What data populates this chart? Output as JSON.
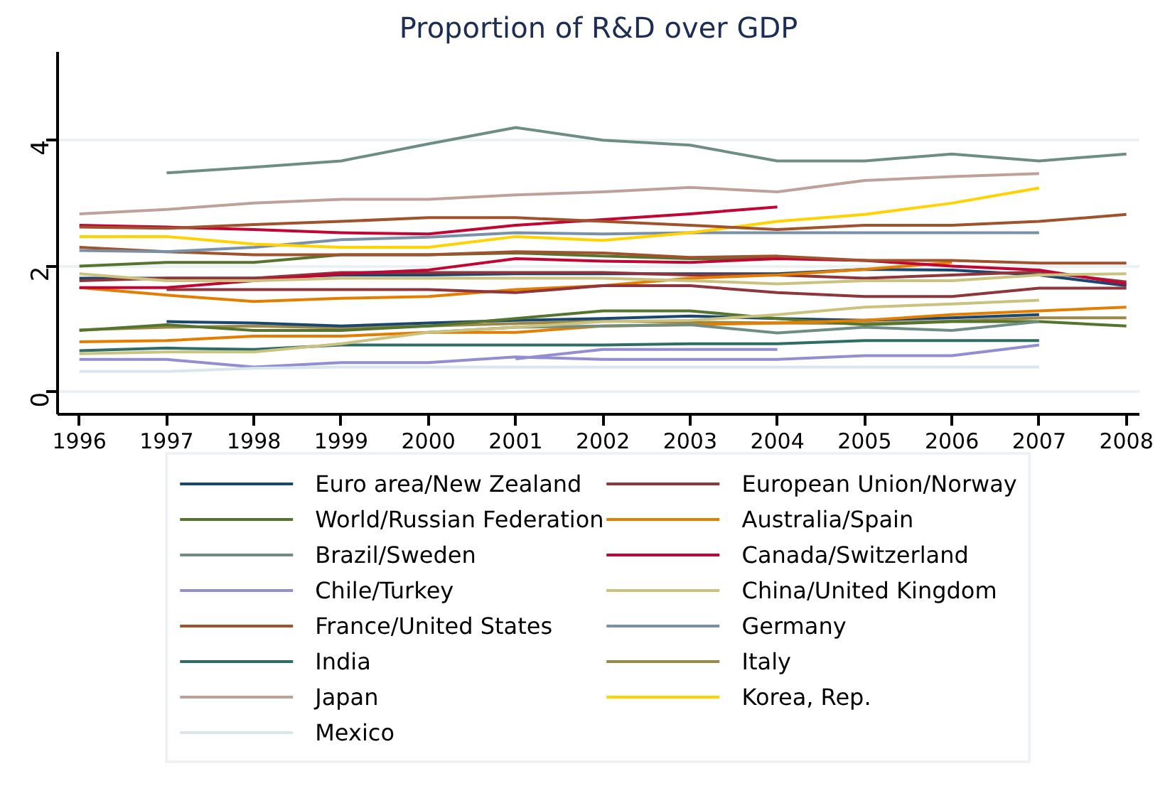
{
  "chart_data": {
    "type": "line",
    "title": "Proportion of R&D over GDP",
    "x": [
      1996,
      1997,
      1998,
      1999,
      2000,
      2001,
      2002,
      2003,
      2004,
      2005,
      2006,
      2007,
      2008
    ],
    "xlim": [
      1995.75,
      2008.15
    ],
    "xticks": [
      1996,
      1997,
      1998,
      1999,
      2000,
      2001,
      2002,
      2003,
      2004,
      2005,
      2006,
      2007,
      2008
    ],
    "ylim": [
      -0.35,
      5.4
    ],
    "yticks": [
      0,
      2,
      4
    ],
    "grid": "y",
    "legend": "bottom",
    "line_style": "solid",
    "marker": "none",
    "series": [
      {
        "name": "Euro area/New Zealand",
        "color": "#1a476f",
        "values": [
          1.81,
          1.81,
          1.81,
          1.86,
          1.86,
          1.88,
          1.88,
          1.88,
          1.88,
          1.95,
          1.94,
          1.86,
          1.69
        ]
      },
      {
        "name": "European Union/Norway",
        "color": "#90353b",
        "values": [
          1.77,
          1.81,
          1.81,
          1.9,
          1.9,
          1.9,
          1.9,
          1.86,
          1.86,
          1.81,
          1.86,
          1.91,
          1.75
        ]
      },
      {
        "name": "World/Russian Federation",
        "color": "#55752f",
        "values": [
          2.0,
          2.06,
          2.06,
          2.18,
          2.18,
          2.21,
          2.16,
          2.12,
          2.12,
          null,
          null,
          null,
          null
        ]
      },
      {
        "name": "Australia/Spain",
        "color": "#e37e00",
        "values": [
          1.66,
          1.54,
          1.44,
          1.49,
          1.52,
          1.63,
          1.69,
          1.81,
          1.86,
          1.95,
          2.06,
          null,
          null
        ]
      },
      {
        "name": "Brazil/Sweden",
        "color": "#6e8e84",
        "values": [
          null,
          3.48,
          3.57,
          3.67,
          3.94,
          4.2,
          4.0,
          3.92,
          3.67,
          3.67,
          3.78,
          3.67,
          3.78
        ]
      },
      {
        "name": "Canada/Switzerland",
        "color": "#c10534",
        "values": [
          1.66,
          1.66,
          1.77,
          1.88,
          1.94,
          2.12,
          2.08,
          2.06,
          2.12,
          2.09,
          2.0,
          1.94,
          1.72
        ]
      },
      {
        "name": "Chile/Turkey",
        "color": "#938dd2",
        "values": [
          0.52,
          0.52,
          0.4,
          0.47,
          0.47,
          0.56,
          0.52,
          0.52,
          0.52,
          0.58,
          0.58,
          0.75,
          null
        ]
      },
      {
        "name": "China/United Kingdom",
        "color": "#cac27e",
        "values": [
          1.88,
          1.77,
          1.77,
          1.81,
          1.81,
          1.81,
          1.81,
          1.77,
          1.72,
          1.77,
          1.77,
          1.86,
          1.88
        ]
      },
      {
        "name": "France/United States",
        "color": "#a0522d",
        "values": [
          2.3,
          2.23,
          2.18,
          2.18,
          2.18,
          2.23,
          2.21,
          2.14,
          2.16,
          2.09,
          2.09,
          2.05,
          2.05
        ]
      },
      {
        "name": "Germany",
        "color": "#7890a8",
        "values": [
          2.25,
          2.23,
          2.3,
          2.42,
          2.46,
          2.53,
          2.51,
          2.53,
          2.53,
          2.53,
          2.53,
          2.53,
          null
        ]
      },
      {
        "name": "India",
        "color": "#2d6d66",
        "values": [
          0.66,
          0.7,
          0.68,
          0.75,
          0.75,
          0.75,
          0.75,
          0.77,
          0.77,
          0.82,
          0.82,
          0.82,
          null
        ]
      },
      {
        "name": "Italy",
        "color": "#9c8847",
        "values": [
          0.99,
          1.03,
          1.05,
          1.02,
          1.05,
          1.09,
          1.13,
          1.11,
          1.1,
          1.09,
          1.13,
          1.18,
          1.18
        ]
      },
      {
        "name": "Japan",
        "color": "#bfa19c",
        "values": [
          2.83,
          2.9,
          3.0,
          3.06,
          3.06,
          3.13,
          3.18,
          3.25,
          3.18,
          3.36,
          3.42,
          3.47,
          null
        ]
      },
      {
        "name": "Korea, Rep.",
        "color": "#ffd200",
        "values": [
          2.47,
          2.47,
          2.35,
          2.3,
          2.3,
          2.47,
          2.41,
          2.53,
          2.71,
          2.82,
          3.0,
          3.24,
          null
        ]
      },
      {
        "name": "Mexico",
        "color": "#d9e6eb",
        "values": [
          0.33,
          0.33,
          0.38,
          0.4,
          0.4,
          0.4,
          0.4,
          0.4,
          0.4,
          0.4,
          0.4,
          0.4,
          null
        ]
      },
      {
        "color": "#1a476f",
        "values": [
          null,
          1.12,
          1.1,
          1.05,
          1.1,
          1.14,
          1.17,
          1.21,
          1.17,
          1.14,
          1.18,
          1.23,
          null
        ]
      },
      {
        "color": "#90353b",
        "values": [
          null,
          1.63,
          1.63,
          1.63,
          1.63,
          1.58,
          1.69,
          1.69,
          1.58,
          1.52,
          1.52,
          1.65,
          1.65
        ]
      },
      {
        "color": "#55752f",
        "values": [
          0.98,
          1.07,
          0.98,
          0.98,
          1.05,
          1.17,
          1.29,
          1.29,
          1.17,
          1.07,
          1.12,
          1.12,
          1.05
        ]
      },
      {
        "color": "#e37e00",
        "values": [
          0.8,
          0.82,
          0.89,
          0.89,
          0.95,
          0.95,
          1.05,
          1.07,
          1.1,
          1.14,
          1.23,
          1.29,
          1.35
        ]
      },
      {
        "color": "#6e8e84",
        "values": [
          null,
          null,
          null,
          null,
          0.95,
          1.03,
          1.05,
          1.07,
          0.94,
          1.03,
          0.98,
          1.12,
          null
        ]
      },
      {
        "color": "#c10534",
        "values": [
          2.65,
          2.62,
          2.58,
          2.53,
          2.51,
          2.65,
          2.74,
          2.83,
          2.94,
          null,
          null,
          null,
          null
        ]
      },
      {
        "color": "#938dd2",
        "values": [
          null,
          null,
          null,
          null,
          null,
          0.53,
          0.68,
          0.68,
          0.68,
          null,
          null,
          null,
          null
        ]
      },
      {
        "color": "#cac27e",
        "values": [
          0.61,
          0.64,
          0.64,
          0.77,
          0.95,
          1.03,
          1.12,
          1.14,
          1.23,
          1.35,
          1.4,
          1.46,
          null
        ]
      },
      {
        "color": "#a0522d",
        "values": [
          2.62,
          2.6,
          2.66,
          2.71,
          2.77,
          2.77,
          2.71,
          2.65,
          2.58,
          2.65,
          2.65,
          2.71,
          2.82
        ]
      }
    ]
  }
}
